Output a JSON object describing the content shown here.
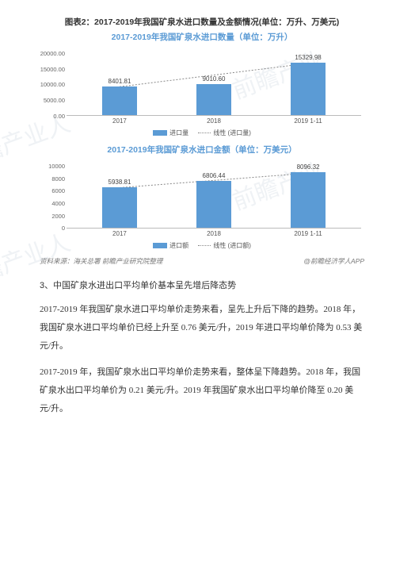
{
  "figure_caption": "图表2：2017-2019年我国矿泉水进口数量及金额情况(单位：万升、万美元)",
  "chart1": {
    "type": "bar",
    "title": "2017-2019年我国矿泉水进口数量（单位：万升）",
    "categories": [
      "2017",
      "2018",
      "2019 1-11"
    ],
    "values": [
      8401.81,
      9010.6,
      15329.98
    ],
    "x_positions_pct": [
      18,
      50,
      82
    ],
    "bar_color": "#5b9bd5",
    "ylim": [
      0,
      20000
    ],
    "yticks": [
      "0.00",
      "5000.00",
      "10000.00",
      "15000.00",
      "20000.00"
    ],
    "legend_series": "进口量",
    "legend_trend": "线性 (进口量)",
    "trend_color": "#888888"
  },
  "chart2": {
    "type": "bar",
    "title": "2017-2019年我国矿泉水进口金额（单位：万美元）",
    "categories": [
      "2017",
      "2018",
      "2019 1-11"
    ],
    "values": [
      5938.81,
      6806.44,
      8096.32
    ],
    "x_positions_pct": [
      18,
      50,
      82
    ],
    "bar_color": "#5b9bd5",
    "ylim": [
      0,
      10000
    ],
    "yticks": [
      "0",
      "2000",
      "4000",
      "6000",
      "8000",
      "10000"
    ],
    "legend_series": "进口额",
    "legend_trend": "线性 (进口额)",
    "trend_color": "#888888"
  },
  "source_left": "资料来源：海关总署 前瞻产业研究院整理",
  "source_right": "@前瞻经济学人APP",
  "section_heading": "3、中国矿泉水进出口平均单价基本呈先增后降态势",
  "paragraphs": [
    "2017-2019 年我国矿泉水进口平均单价走势来看，呈先上升后下降的趋势。2018 年，我国矿泉水进口平均单价已经上升至 0.76 美元/升，2019 年进口平均单价降为 0.53 美元/升。",
    "2017-2019 年，我国矿泉水出口平均单价走势来看，整体呈下降趋势。2018 年，我国矿泉水出口平均单价为 0.21 美元/升。2019 年我国矿泉水出口平均单价降至 0.20 美元/升。"
  ]
}
